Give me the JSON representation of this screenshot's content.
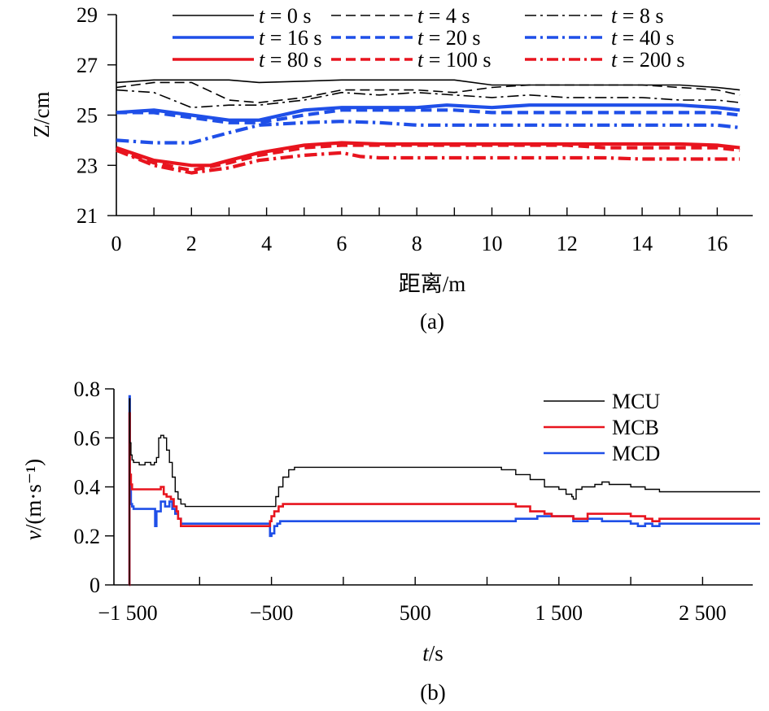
{
  "chart_data": [
    {
      "type": "line",
      "panel_label": "(a)",
      "title": "",
      "xlabel": "距离/m",
      "ylabel": "Z/cm",
      "xlim": [
        0,
        16.8
      ],
      "ylim": [
        21,
        29
      ],
      "xticks": [
        0,
        2,
        4,
        6,
        8,
        10,
        12,
        14,
        16
      ],
      "yticks": [
        21,
        23,
        25,
        27,
        29
      ],
      "legend": {
        "placement": "top",
        "columns": 3,
        "t_symbol": "t",
        "equals": " = ",
        "unit": " s"
      },
      "grid": false,
      "series": [
        {
          "name": "t = 0 s",
          "t_value": "0",
          "color": "#000000",
          "dash": "solid",
          "thick": false,
          "x": [
            0,
            1,
            2,
            3,
            3.8,
            5,
            6,
            7,
            8,
            9,
            10,
            11,
            12,
            13,
            14,
            15,
            16,
            16.6
          ],
          "y": [
            26.3,
            26.4,
            26.4,
            26.4,
            26.3,
            26.35,
            26.4,
            26.4,
            26.4,
            26.4,
            26.2,
            26.2,
            26.2,
            26.2,
            26.2,
            26.2,
            26.1,
            26.0
          ]
        },
        {
          "name": "t = 4 s",
          "t_value": "4",
          "color": "#000000",
          "dash": "dash",
          "thick": false,
          "x": [
            0,
            1,
            2,
            3,
            3.8,
            5,
            6,
            7,
            8,
            9,
            10,
            11,
            12,
            13,
            14,
            15,
            16,
            16.6
          ],
          "y": [
            26.1,
            26.3,
            26.3,
            25.6,
            25.5,
            25.7,
            26.0,
            26.0,
            26.0,
            25.9,
            26.1,
            26.2,
            26.2,
            26.2,
            26.2,
            26.1,
            26.0,
            25.8
          ]
        },
        {
          "name": "t = 8 s",
          "t_value": "8",
          "color": "#000000",
          "dash": "dashdot",
          "thick": false,
          "x": [
            0,
            1,
            2,
            3,
            3.8,
            5,
            6,
            7,
            8,
            9,
            10,
            11,
            12,
            13,
            14,
            15,
            16,
            16.6
          ],
          "y": [
            26.0,
            25.9,
            25.3,
            25.4,
            25.4,
            25.6,
            25.9,
            25.8,
            25.9,
            25.8,
            25.7,
            25.8,
            25.7,
            25.7,
            25.7,
            25.6,
            25.6,
            25.5
          ]
        },
        {
          "name": "t = 16 s",
          "t_value": "16",
          "color": "#1f4fe8",
          "dash": "solid",
          "thick": true,
          "x": [
            0,
            1,
            2,
            3,
            3.8,
            5,
            6,
            7,
            8,
            8.8,
            10,
            11,
            12,
            13,
            14,
            15,
            16,
            16.6
          ],
          "y": [
            25.1,
            25.2,
            25.0,
            24.8,
            24.8,
            25.2,
            25.3,
            25.3,
            25.3,
            25.4,
            25.3,
            25.4,
            25.4,
            25.4,
            25.4,
            25.4,
            25.3,
            25.2
          ]
        },
        {
          "name": "t = 20 s",
          "t_value": "20",
          "color": "#1f4fe8",
          "dash": "dash",
          "thick": true,
          "x": [
            0,
            1,
            2,
            3,
            3.8,
            5,
            6,
            7,
            8,
            9,
            10,
            11,
            12,
            13,
            14,
            15,
            16,
            16.6
          ],
          "y": [
            25.1,
            25.1,
            24.9,
            24.7,
            24.7,
            25.0,
            25.2,
            25.2,
            25.2,
            25.2,
            25.1,
            25.1,
            25.1,
            25.1,
            25.1,
            25.1,
            25.1,
            25.0
          ]
        },
        {
          "name": "t = 40 s",
          "t_value": "40",
          "color": "#1f4fe8",
          "dash": "dashdot",
          "thick": true,
          "x": [
            0,
            1,
            2,
            3,
            3.8,
            5,
            6,
            7,
            8,
            9,
            10,
            11,
            12,
            13,
            14,
            15,
            16,
            16.6
          ],
          "y": [
            24.0,
            23.9,
            23.9,
            24.3,
            24.6,
            24.7,
            24.75,
            24.7,
            24.6,
            24.6,
            24.6,
            24.6,
            24.6,
            24.6,
            24.6,
            24.6,
            24.6,
            24.5
          ]
        },
        {
          "name": "t = 80 s",
          "t_value": "80",
          "color": "#e8141e",
          "dash": "solid",
          "thick": true,
          "x": [
            0,
            1,
            2,
            2.5,
            3,
            3.8,
            5,
            6,
            7,
            8,
            9,
            10,
            11,
            12,
            13,
            14,
            15,
            16,
            16.6
          ],
          "y": [
            23.7,
            23.2,
            23.0,
            23.0,
            23.2,
            23.5,
            23.8,
            23.9,
            23.85,
            23.85,
            23.85,
            23.85,
            23.85,
            23.85,
            23.85,
            23.85,
            23.85,
            23.8,
            23.7
          ]
        },
        {
          "name": "t = 100 s",
          "t_value": "100",
          "color": "#e8141e",
          "dash": "dash",
          "thick": true,
          "x": [
            0,
            1,
            2,
            3,
            3.8,
            5,
            6,
            7,
            8,
            9,
            10,
            11,
            12,
            13,
            14,
            15,
            16,
            16.6
          ],
          "y": [
            23.6,
            23.1,
            22.8,
            23.1,
            23.4,
            23.7,
            23.8,
            23.8,
            23.8,
            23.8,
            23.8,
            23.8,
            23.8,
            23.7,
            23.7,
            23.7,
            23.7,
            23.6
          ]
        },
        {
          "name": "t = 200 s",
          "t_value": "200",
          "color": "#e8141e",
          "dash": "dashdot",
          "thick": true,
          "x": [
            0,
            1,
            2,
            3,
            3.8,
            5,
            6,
            6.5,
            7,
            8,
            9,
            10,
            11,
            12,
            13,
            14,
            15,
            16,
            16.6
          ],
          "y": [
            23.6,
            23.0,
            22.7,
            22.9,
            23.2,
            23.4,
            23.5,
            23.35,
            23.3,
            23.3,
            23.3,
            23.3,
            23.3,
            23.3,
            23.3,
            23.25,
            23.25,
            23.25,
            23.25
          ]
        }
      ]
    },
    {
      "type": "line",
      "panel_label": "(b)",
      "title": "",
      "xlabel": "t/s",
      "ylabel": "v/(m·s⁻¹)",
      "xlim": [
        -1500,
        3000
      ],
      "ylim": [
        0,
        0.8
      ],
      "xticks": [
        -1500,
        -500,
        500,
        1500,
        2500
      ],
      "xtick_labels": [
        "−1 500",
        "−500",
        "500",
        "1 500",
        "2 500"
      ],
      "yticks": [
        0,
        0.2,
        0.4,
        0.6,
        0.8
      ],
      "ytick_labels": [
        "0",
        "0.2",
        "0.4",
        "0.6",
        "0.8"
      ],
      "legend": {
        "placement": "top-right"
      },
      "grid": false,
      "series": [
        {
          "name": "MCU",
          "color": "#000000",
          "width": 1.4,
          "x": [
            -1490,
            -1488,
            -1485,
            -1478,
            -1470,
            -1460,
            -1420,
            -1380,
            -1340,
            -1315,
            -1300,
            -1285,
            -1270,
            -1250,
            -1230,
            -1210,
            -1190,
            -1170,
            -1150,
            -1130,
            -1100,
            -1000,
            -800,
            -700,
            -600,
            -550,
            -520,
            -500,
            -470,
            -450,
            -420,
            -380,
            -340,
            -300,
            -200,
            0,
            200,
            400,
            600,
            700,
            800,
            900,
            1000,
            1100,
            1200,
            1300,
            1400,
            1500,
            1550,
            1590,
            1600,
            1620,
            1660,
            1700,
            1750,
            1800,
            1850,
            1900,
            2000,
            2100,
            2200,
            2400,
            2600,
            2800,
            2900
          ],
          "y": [
            0,
            0.76,
            0.58,
            0.53,
            0.51,
            0.5,
            0.49,
            0.5,
            0.49,
            0.5,
            0.52,
            0.6,
            0.61,
            0.6,
            0.55,
            0.5,
            0.44,
            0.38,
            0.35,
            0.33,
            0.32,
            0.32,
            0.32,
            0.32,
            0.32,
            0.32,
            0.32,
            0.32,
            0.36,
            0.4,
            0.44,
            0.47,
            0.48,
            0.48,
            0.48,
            0.48,
            0.48,
            0.48,
            0.48,
            0.48,
            0.48,
            0.48,
            0.48,
            0.47,
            0.45,
            0.43,
            0.4,
            0.39,
            0.37,
            0.36,
            0.35,
            0.39,
            0.4,
            0.4,
            0.41,
            0.42,
            0.41,
            0.41,
            0.4,
            0.39,
            0.38,
            0.38,
            0.38,
            0.38,
            0.38
          ]
        },
        {
          "name": "MCB",
          "color": "#e8141e",
          "width": 2.6,
          "x": [
            -1490,
            -1488,
            -1485,
            -1478,
            -1470,
            -1460,
            -1400,
            -1300,
            -1270,
            -1250,
            -1230,
            -1200,
            -1180,
            -1160,
            -1150,
            -1130,
            -1100,
            -1000,
            -800,
            -600,
            -520,
            -510,
            -500,
            -480,
            -450,
            -420,
            -400,
            -300,
            -100,
            200,
            500,
            800,
            1000,
            1150,
            1200,
            1300,
            1400,
            1450,
            1500,
            1600,
            1650,
            1700,
            1900,
            2000,
            2100,
            2150,
            2200,
            2400,
            2600,
            2800,
            2900
          ],
          "y": [
            0,
            0.7,
            0.45,
            0.41,
            0.39,
            0.39,
            0.39,
            0.39,
            0.4,
            0.37,
            0.36,
            0.35,
            0.32,
            0.3,
            0.27,
            0.24,
            0.24,
            0.24,
            0.24,
            0.24,
            0.24,
            0.26,
            0.28,
            0.3,
            0.32,
            0.33,
            0.33,
            0.33,
            0.33,
            0.33,
            0.33,
            0.33,
            0.33,
            0.33,
            0.32,
            0.3,
            0.29,
            0.28,
            0.28,
            0.27,
            0.27,
            0.29,
            0.29,
            0.28,
            0.27,
            0.26,
            0.27,
            0.27,
            0.27,
            0.27,
            0.27
          ]
        },
        {
          "name": "MCD",
          "color": "#1f4fe8",
          "width": 2.6,
          "x": [
            -1490,
            -1488,
            -1485,
            -1478,
            -1470,
            -1460,
            -1400,
            -1320,
            -1310,
            -1300,
            -1270,
            -1240,
            -1210,
            -1190,
            -1170,
            -1150,
            -1130,
            -1100,
            -1000,
            -800,
            -600,
            -520,
            -510,
            -500,
            -480,
            -460,
            -440,
            -420,
            -400,
            -300,
            -100,
            200,
            500,
            800,
            1000,
            1200,
            1350,
            1400,
            1450,
            1500,
            1600,
            1700,
            1800,
            1900,
            2000,
            2050,
            2100,
            2150,
            2200,
            2400,
            2600,
            2800,
            2900
          ],
          "y": [
            0,
            0.77,
            0.4,
            0.33,
            0.32,
            0.31,
            0.31,
            0.31,
            0.24,
            0.3,
            0.34,
            0.32,
            0.34,
            0.31,
            0.29,
            0.27,
            0.25,
            0.25,
            0.25,
            0.25,
            0.25,
            0.25,
            0.2,
            0.21,
            0.24,
            0.25,
            0.26,
            0.26,
            0.26,
            0.26,
            0.26,
            0.26,
            0.26,
            0.26,
            0.26,
            0.27,
            0.28,
            0.28,
            0.28,
            0.28,
            0.26,
            0.27,
            0.26,
            0.26,
            0.25,
            0.24,
            0.25,
            0.24,
            0.25,
            0.25,
            0.25,
            0.25,
            0.25
          ]
        }
      ]
    }
  ]
}
